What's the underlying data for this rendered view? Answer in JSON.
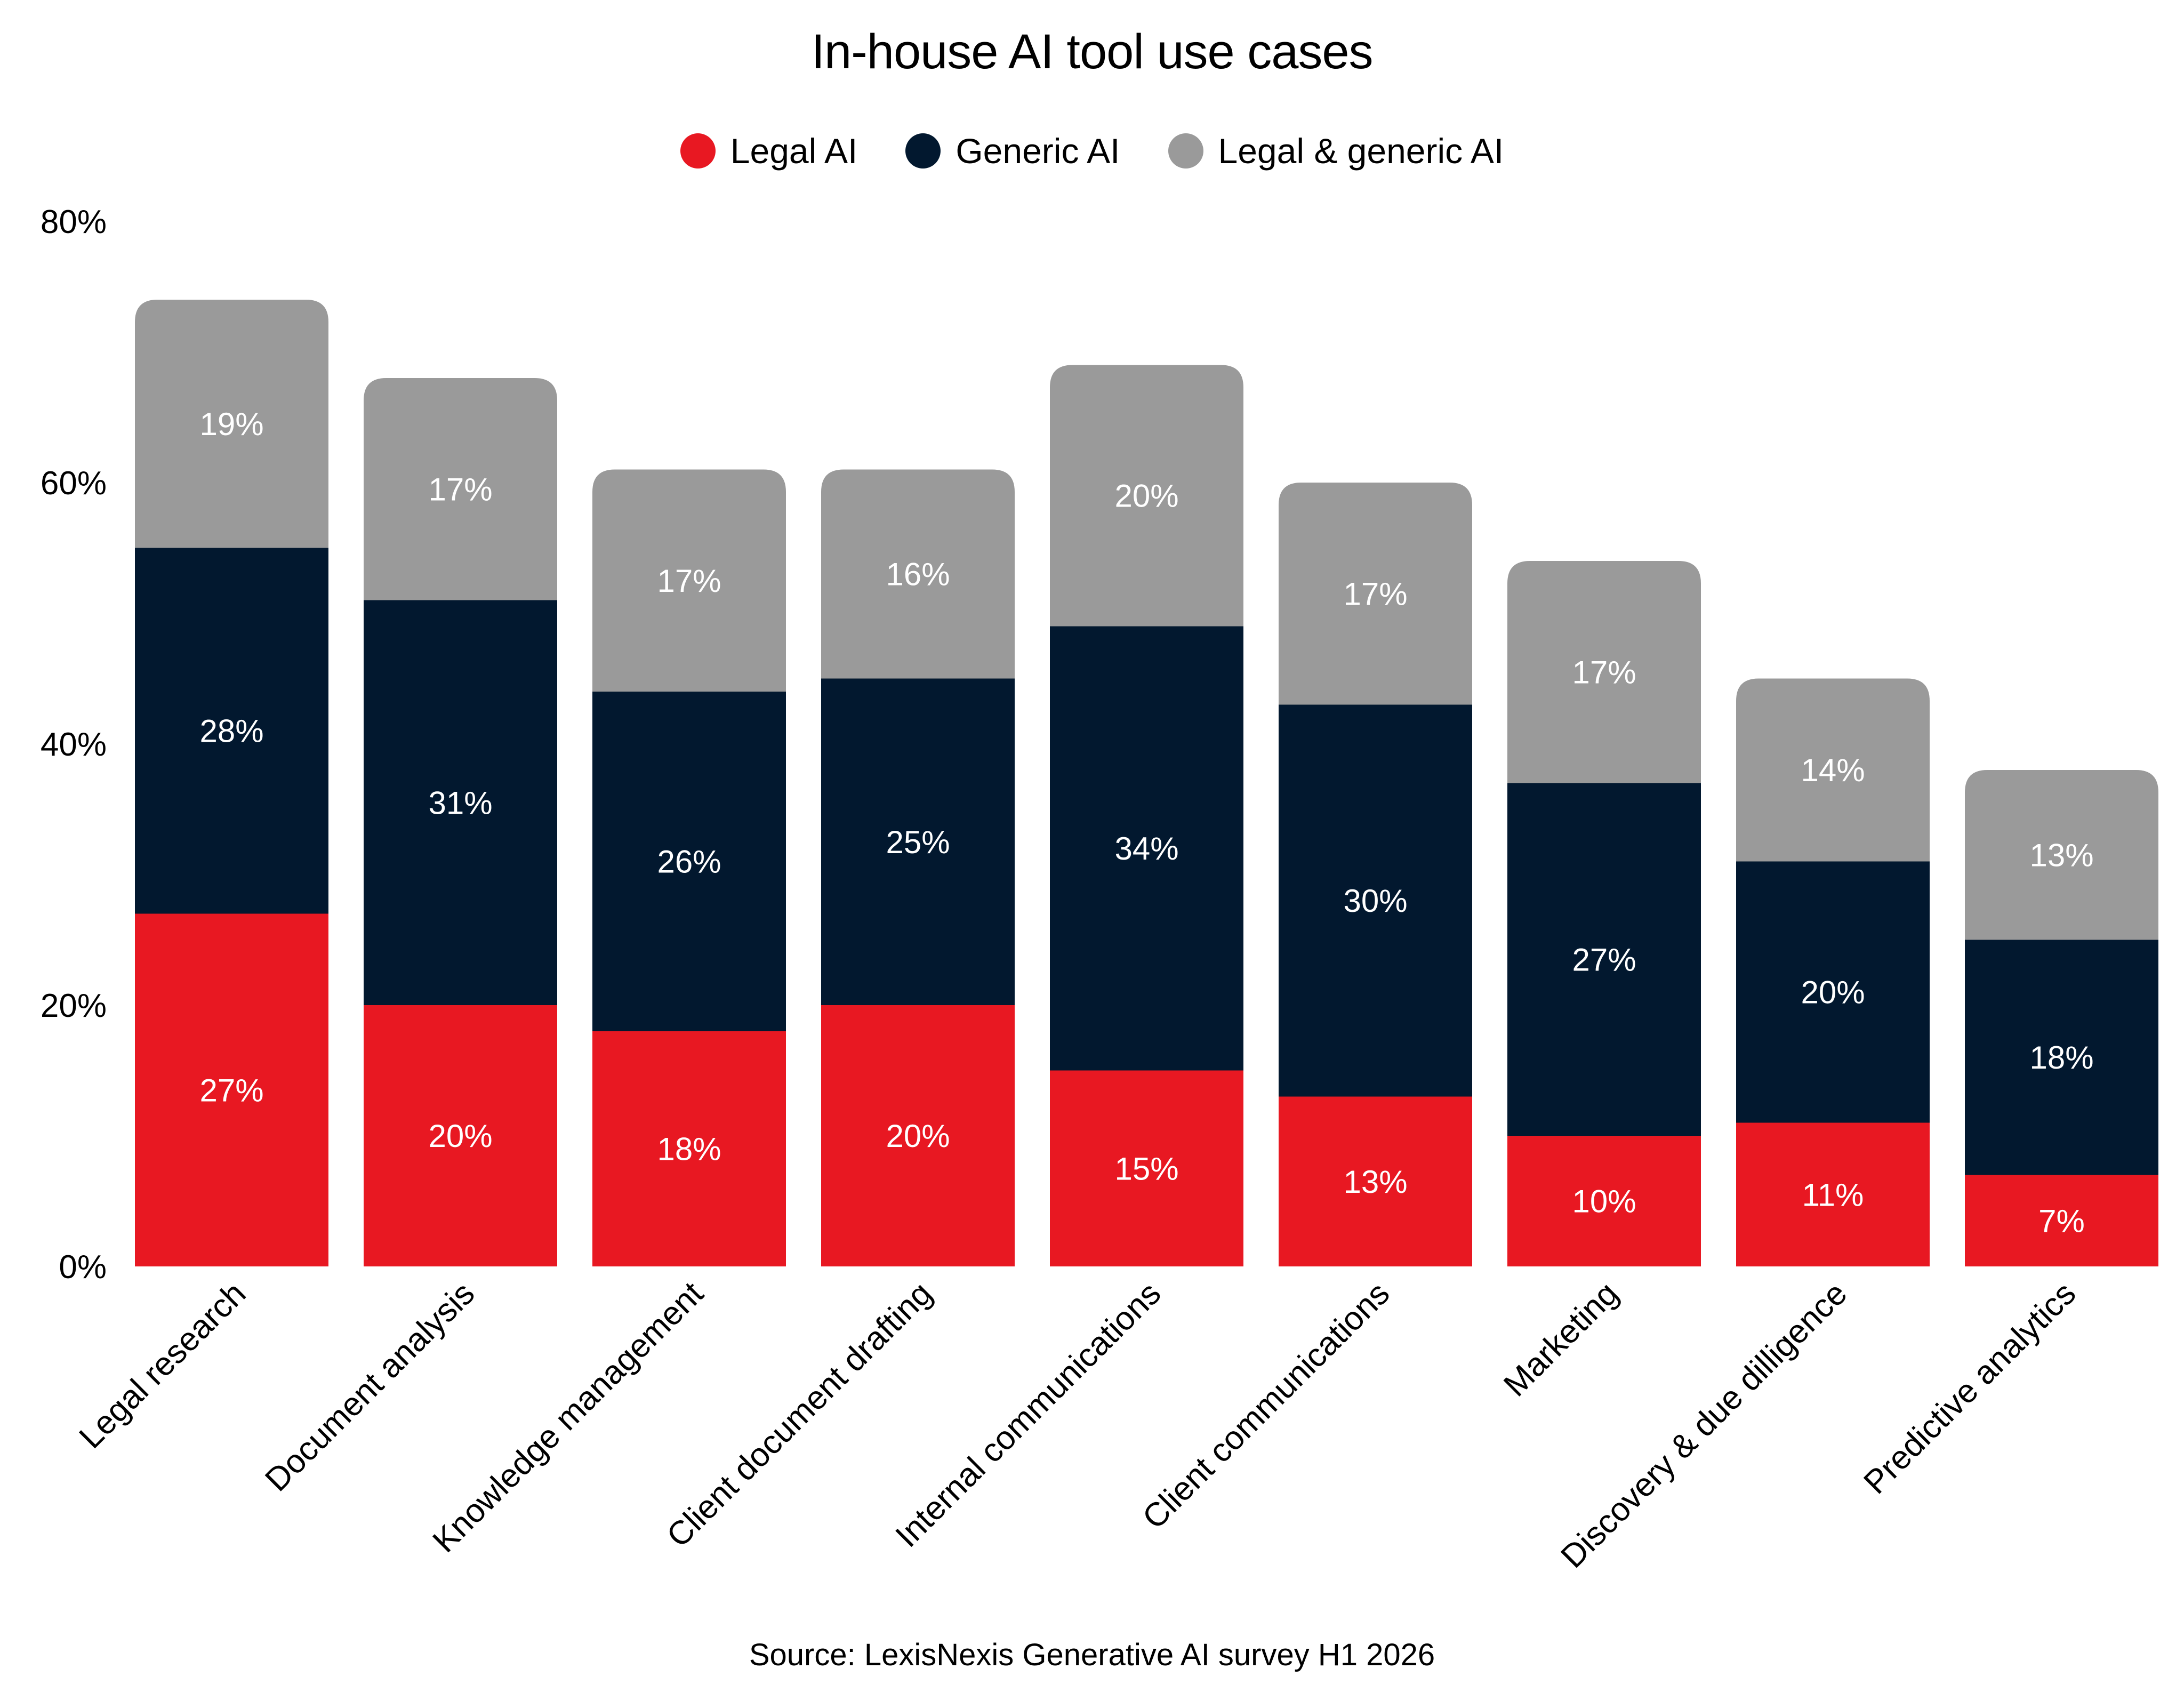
{
  "chart_data": {
    "type": "bar",
    "stacked": true,
    "title": "In-house AI tool use cases",
    "xlabel": "",
    "ylabel": "",
    "ylim": [
      0,
      80
    ],
    "yticks": [
      0,
      20,
      40,
      60,
      80
    ],
    "ytick_labels": [
      "0%",
      "20%",
      "40%",
      "60%",
      "80%"
    ],
    "grid": false,
    "legend_position": "top-center",
    "categories": [
      "Legal research",
      "Document analysis",
      "Knowledge management",
      "Client document drafting",
      "Internal communications",
      "Client communications",
      "Marketing",
      "Discovery & due dilligence",
      "Predictive analytics"
    ],
    "series": [
      {
        "name": "Legal AI",
        "color": "#e81822",
        "values": [
          27,
          20,
          18,
          20,
          15,
          13,
          10,
          11,
          7
        ]
      },
      {
        "name": "Generic AI",
        "color": "#02182f",
        "values": [
          28,
          31,
          26,
          25,
          34,
          30,
          27,
          20,
          18
        ]
      },
      {
        "name": "Legal & generic AI",
        "color": "#9a9a9a",
        "values": [
          19,
          17,
          17,
          16,
          20,
          17,
          17,
          14,
          13
        ]
      }
    ],
    "value_suffix": "%",
    "source": "Source: LexisNexis Generative AI survey H1 2026"
  }
}
